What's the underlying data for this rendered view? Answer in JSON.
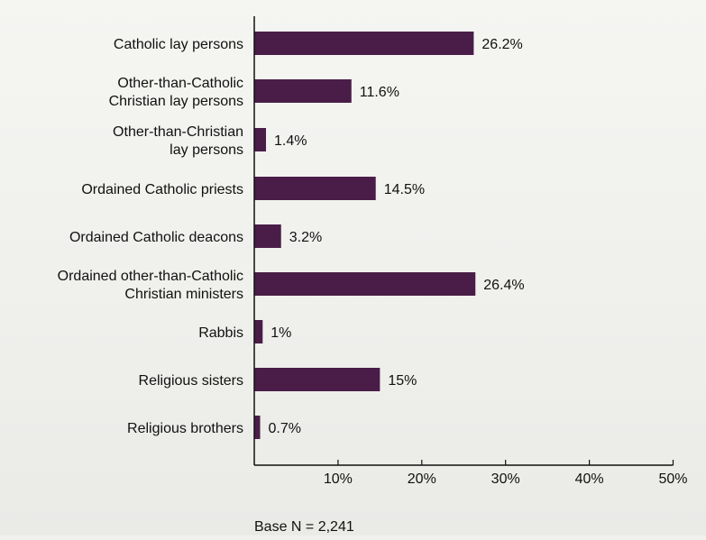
{
  "chart_data": {
    "type": "bar",
    "orientation": "horizontal",
    "categories": [
      [
        "Catholic lay persons"
      ],
      [
        "Other-than-Catholic",
        "Christian lay persons"
      ],
      [
        "Other-than-Christian",
        "lay persons"
      ],
      [
        "Ordained Catholic priests"
      ],
      [
        "Ordained Catholic deacons"
      ],
      [
        "Ordained other-than-Catholic",
        "Christian ministers"
      ],
      [
        "Rabbis"
      ],
      [
        "Religious sisters"
      ],
      [
        "Religious brothers"
      ]
    ],
    "values": [
      26.2,
      11.6,
      1.4,
      14.5,
      3.2,
      26.4,
      1,
      15,
      0.7
    ],
    "value_labels": [
      "26.2%",
      "11.6%",
      "1.4%",
      "14.5%",
      "3.2%",
      "26.4%",
      "1%",
      "15%",
      "0.7%"
    ],
    "xlim": [
      0,
      50
    ],
    "x_ticks": [
      10,
      20,
      30,
      40,
      50
    ],
    "x_tick_labels": [
      "10%",
      "20%",
      "30%",
      "40%",
      "50%"
    ],
    "note": "Base N = 2,241",
    "bar_color": "#4a1d48",
    "grid": false
  }
}
